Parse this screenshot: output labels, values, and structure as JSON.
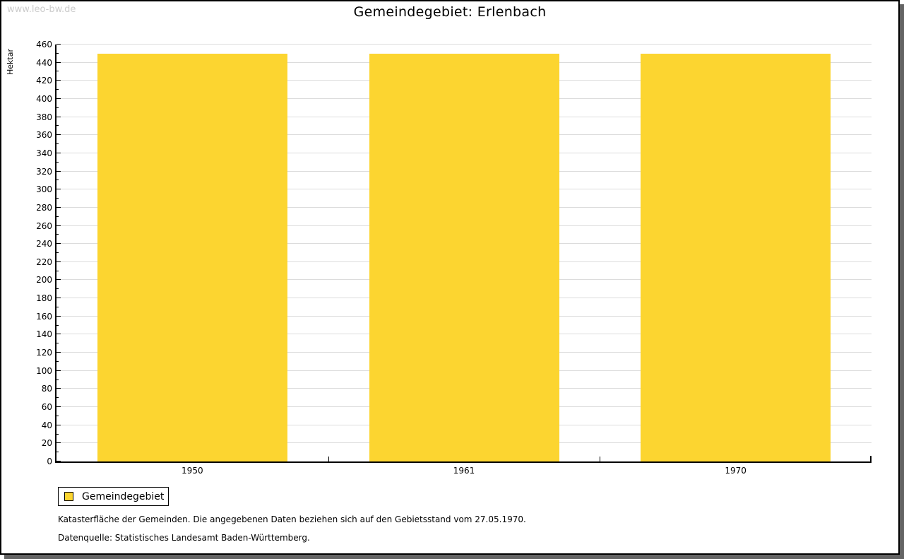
{
  "watermark": "www.leo-bw.de",
  "chart_data": {
    "type": "bar",
    "title": "Gemeindegebiet: Erlenbach",
    "xlabel": "",
    "ylabel": "Hektar",
    "categories": [
      "1950",
      "1961",
      "1970"
    ],
    "series": [
      {
        "name": "Gemeindegebiet",
        "values": [
          450,
          450,
          450
        ],
        "color": "#FCD530"
      }
    ],
    "ylim": [
      0,
      460
    ],
    "y_major_step": 20,
    "y_minor_step": 10,
    "grid": true,
    "legend_position": "bottom-left"
  },
  "footer": {
    "note": "Katasterfläche der Gemeinden. Die angegebenen Daten beziehen sich auf den Gebietsstand vom 27.05.1970.",
    "source": "Datenquelle: Statistisches Landesamt Baden-Württemberg."
  },
  "colors": {
    "bar": "#FCD530",
    "grid": "#DCDCDC",
    "axis": "#000000",
    "watermark": "#CCCCCC",
    "frame_shadow": "#646464"
  }
}
